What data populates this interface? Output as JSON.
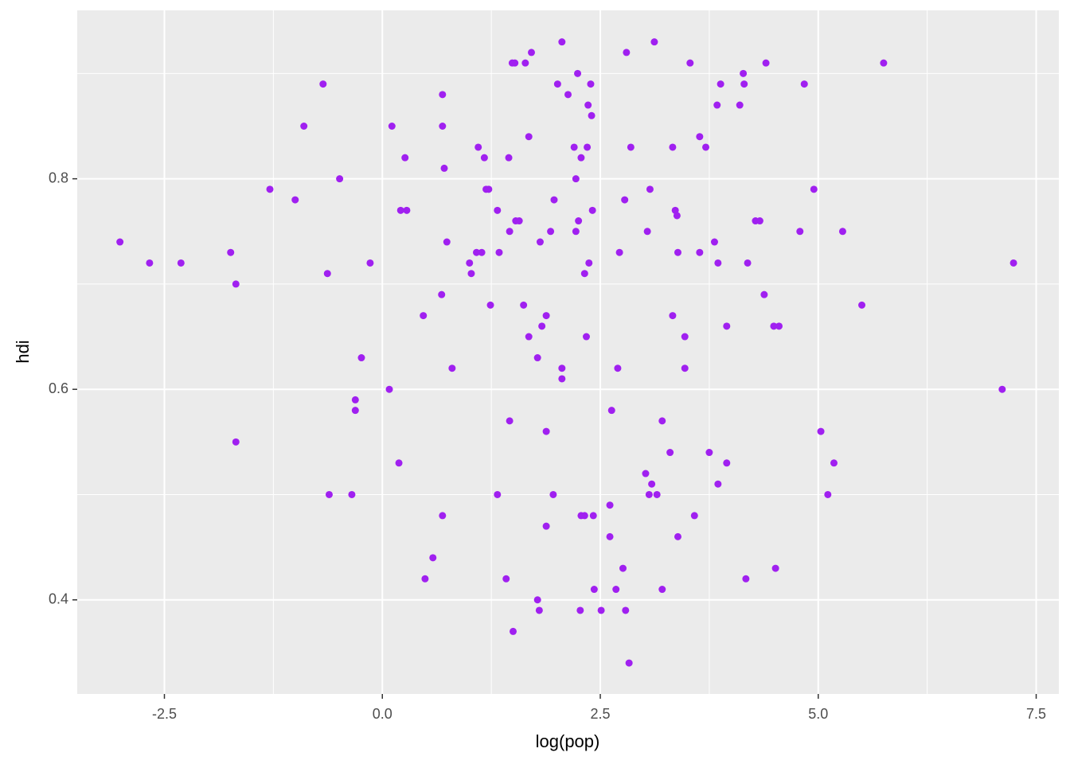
{
  "chart_data": {
    "type": "scatter",
    "x_label": "log(pop)",
    "y_label": "hdi",
    "color": "#a020f0",
    "grid": true,
    "xlim": [
      -3.5,
      7.76
    ],
    "ylim": [
      0.3106,
      0.96
    ],
    "xticks": [
      -2.5,
      {
        "value": 0,
        "label": "0.0"
      },
      2.5,
      {
        "value": 5,
        "label": "5.0"
      },
      7.5
    ],
    "yticks": [
      0.4,
      0.6,
      0.8
    ],
    "x": [
      -3.01,
      -2.67,
      -2.31,
      -1.74,
      -1.68,
      -1.68,
      -1.29,
      -1.0,
      -0.68,
      -0.9,
      -0.49,
      -0.63,
      -0.61,
      -0.35,
      -0.31,
      -0.31,
      -0.24,
      -0.14,
      0.08,
      0.11,
      0.19,
      0.21,
      0.28,
      0.26,
      0.47,
      0.49,
      0.58,
      0.69,
      0.69,
      0.71,
      0.69,
      0.68,
      0.74,
      0.8,
      1.0,
      1.02,
      1.08,
      1.1,
      1.14,
      1.17,
      1.19,
      1.22,
      1.24,
      1.32,
      1.32,
      1.34,
      1.42,
      1.45,
      1.46,
      1.46,
      1.49,
      1.52,
      1.5,
      1.53,
      1.57,
      1.62,
      1.64,
      1.68,
      1.68,
      1.71,
      1.78,
      1.78,
      1.8,
      1.81,
      1.83,
      1.88,
      1.88,
      1.88,
      1.93,
      1.96,
      1.97,
      2.01,
      2.06,
      2.06,
      2.06,
      2.13,
      2.2,
      2.22,
      2.22,
      2.24,
      2.25,
      2.27,
      2.28,
      2.28,
      2.32,
      2.32,
      2.34,
      2.35,
      2.36,
      2.37,
      2.39,
      2.4,
      2.41,
      2.42,
      2.43,
      2.51,
      2.61,
      2.61,
      2.63,
      2.68,
      2.7,
      2.72,
      2.76,
      2.78,
      2.79,
      2.8,
      2.83,
      2.85,
      3.02,
      3.04,
      3.06,
      3.07,
      3.09,
      3.12,
      3.15,
      3.21,
      3.21,
      3.3,
      3.33,
      3.33,
      3.36,
      3.38,
      3.39,
      3.39,
      3.47,
      3.47,
      3.53,
      3.58,
      3.64,
      3.64,
      3.71,
      3.75,
      3.81,
      3.84,
      3.85,
      3.85,
      3.88,
      3.95,
      3.95,
      4.1,
      4.14,
      4.15,
      4.17,
      4.19,
      4.28,
      4.33,
      4.38,
      4.4,
      4.49,
      4.51,
      4.55,
      4.79,
      4.84,
      4.95,
      5.03,
      5.11,
      5.18,
      5.28,
      5.5,
      5.75,
      7.11,
      7.24
    ],
    "y": [
      0.74,
      0.72,
      0.72,
      0.73,
      0.7,
      0.55,
      0.79,
      0.78,
      0.89,
      0.85,
      0.8,
      0.71,
      0.5,
      0.5,
      0.59,
      0.58,
      0.63,
      0.72,
      0.6,
      0.85,
      0.53,
      0.77,
      0.77,
      0.82,
      0.67,
      0.42,
      0.44,
      0.88,
      0.85,
      0.81,
      0.48,
      0.69,
      0.74,
      0.62,
      0.72,
      0.71,
      0.73,
      0.83,
      0.73,
      0.82,
      0.79,
      0.79,
      0.68,
      0.77,
      0.5,
      0.73,
      0.42,
      0.82,
      0.75,
      0.57,
      0.91,
      0.91,
      0.37,
      0.76,
      0.76,
      0.68,
      0.91,
      0.84,
      0.65,
      0.92,
      0.63,
      0.4,
      0.39,
      0.74,
      0.66,
      0.67,
      0.56,
      0.47,
      0.75,
      0.5,
      0.78,
      0.89,
      0.93,
      0.62,
      0.61,
      0.88,
      0.83,
      0.8,
      0.75,
      0.9,
      0.76,
      0.39,
      0.48,
      0.82,
      0.48,
      0.71,
      0.65,
      0.83,
      0.87,
      0.72,
      0.89,
      0.86,
      0.77,
      0.48,
      0.41,
      0.39,
      0.49,
      0.46,
      0.58,
      0.41,
      0.62,
      0.73,
      0.43,
      0.78,
      0.39,
      0.92,
      0.34,
      0.83,
      0.52,
      0.75,
      0.5,
      0.79,
      0.51,
      0.93,
      0.5,
      0.57,
      0.41,
      0.54,
      0.67,
      0.83,
      0.77,
      0.765,
      0.46,
      0.73,
      0.65,
      0.62,
      0.91,
      0.48,
      0.84,
      0.73,
      0.83,
      0.54,
      0.74,
      0.87,
      0.72,
      0.51,
      0.89,
      0.66,
      0.53,
      0.87,
      0.9,
      0.89,
      0.42,
      0.72,
      0.76,
      0.76,
      0.69,
      0.91,
      0.66,
      0.43,
      0.66,
      0.75,
      0.89,
      0.79,
      0.56,
      0.5,
      0.53,
      0.75,
      0.68,
      0.91,
      0.6,
      0.72
    ]
  }
}
